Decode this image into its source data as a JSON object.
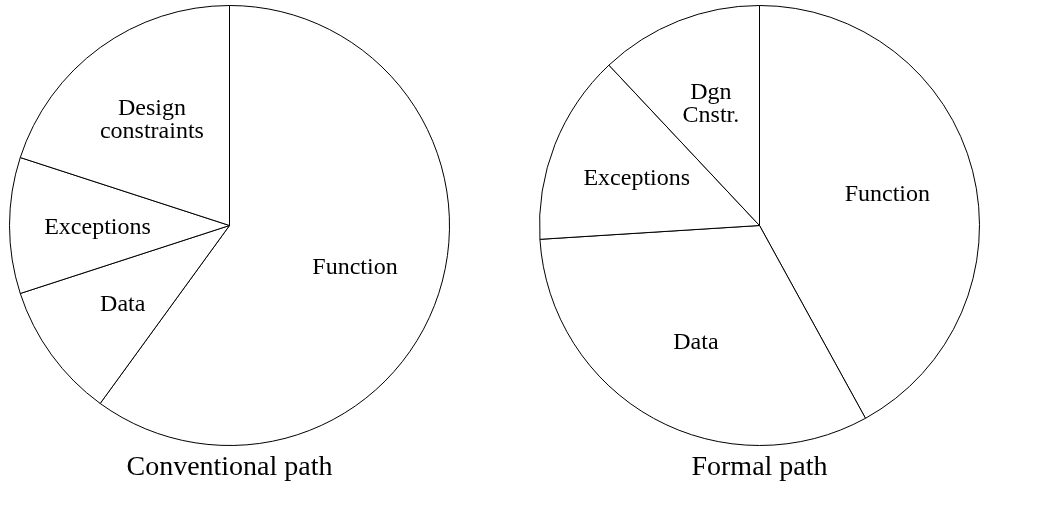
{
  "chart_data": [
    {
      "type": "pie",
      "title": "Conventional path",
      "categories": [
        "Function",
        "Data",
        "Exceptions",
        "Design\nconstraints"
      ],
      "values": [
        60,
        10,
        10,
        20
      ],
      "colors": [
        "#ffffff",
        "#ffffff",
        "#ffffff",
        "#ffffff"
      ]
    },
    {
      "type": "pie",
      "title": "Formal path",
      "categories": [
        "Function",
        "Data",
        "Exceptions",
        "Dgn\nCnstr."
      ],
      "values": [
        42,
        32,
        14,
        12
      ],
      "colors": [
        "#ffffff",
        "#ffffff",
        "#ffffff",
        "#ffffff"
      ]
    }
  ]
}
